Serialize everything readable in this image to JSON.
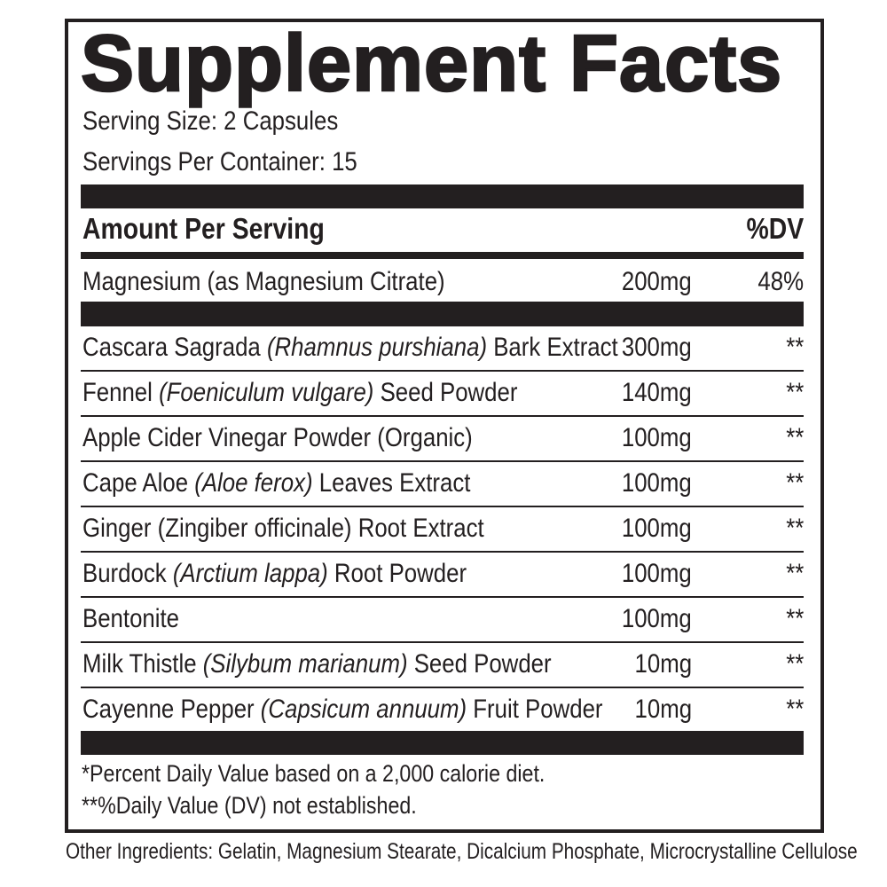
{
  "title": "Supplement Facts",
  "serving_size": "Serving Size: 2 Capsules",
  "servings_per_container": "Servings Per Container: 15",
  "header": {
    "amount": "Amount Per Serving",
    "dv": "%DV"
  },
  "primary": {
    "pre": "Magnesium (as Magnesium Citrate)",
    "it": "",
    "post": "",
    "amount": "200mg",
    "dv": "48%"
  },
  "ingredients": [
    {
      "pre": "Cascara Sagrada ",
      "it": "(Rhamnus purshiana)",
      "post": " Bark Extract",
      "amount": "300mg",
      "dv": "**"
    },
    {
      "pre": "Fennel ",
      "it": "(Foeniculum vulgare)",
      "post": " Seed Powder",
      "amount": "140mg",
      "dv": "**"
    },
    {
      "pre": "Apple Cider Vinegar Powder (Organic)",
      "it": "",
      "post": "",
      "amount": "100mg",
      "dv": "**"
    },
    {
      "pre": "Cape Aloe ",
      "it": "(Aloe ferox)",
      "post": " Leaves Extract",
      "amount": "100mg",
      "dv": "**"
    },
    {
      "pre": "Ginger (Zingiber officinale) Root Extract",
      "it": "",
      "post": "",
      "amount": "100mg",
      "dv": "**"
    },
    {
      "pre": "Burdock ",
      "it": "(Arctium lappa)",
      "post": " Root Powder",
      "amount": "100mg",
      "dv": "**"
    },
    {
      "pre": "Bentonite",
      "it": "",
      "post": "",
      "amount": "100mg",
      "dv": "**"
    },
    {
      "pre": "Milk Thistle ",
      "it": "(Silybum marianum)",
      "post": " Seed Powder",
      "amount": "10mg",
      "dv": "**"
    },
    {
      "pre": "Cayenne Pepper ",
      "it": "(Capsicum annuum)",
      "post": " Fruit Powder",
      "amount": "10mg",
      "dv": "**"
    }
  ],
  "footnotes": [
    "*Percent Daily Value based on a 2,000 calorie diet.",
    "**%Daily Value (DV) not established."
  ],
  "other_ingredients": "Other Ingredients: Gelatin, Magnesium Stearate, Dicalcium Phosphate, Microcrystalline Cellulose"
}
